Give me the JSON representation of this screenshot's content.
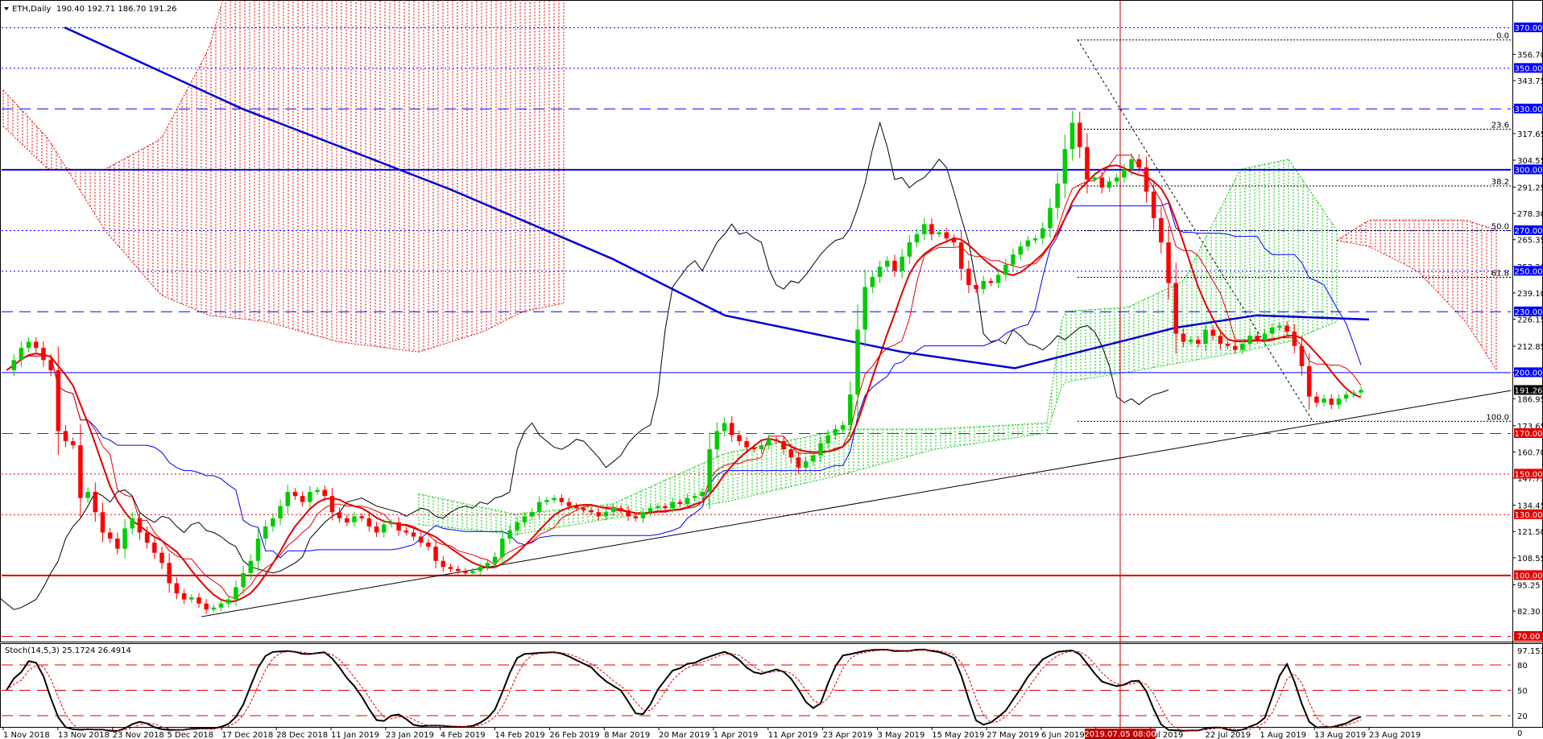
{
  "chart_data": {
    "type": "candlestick",
    "symbol_header": "ETH,Daily",
    "ohlc_header": "190.40 192.71 186.70 191.26",
    "price_scale": {
      "ylim": [
        70,
        370
      ],
      "tick_labels": [
        "356.70",
        "343.75",
        "330.80",
        "317.65",
        "304.55",
        "291.25",
        "278.30",
        "265.35",
        "252.20",
        "239.10",
        "226.15",
        "212.85",
        "199.90",
        "186.95",
        "173.65",
        "160.70",
        "147.75",
        "134.45",
        "121.50",
        "108.55",
        "95.25",
        "82.30"
      ]
    },
    "price_tags": [
      {
        "value": 370,
        "label": "370.00",
        "color": "#0000ff"
      },
      {
        "value": 350,
        "label": "350.00",
        "color": "#0000ff"
      },
      {
        "value": 330,
        "label": "330.00",
        "color": "#0000ff"
      },
      {
        "value": 300,
        "label": "300.00",
        "color": "#0000ff"
      },
      {
        "value": 270,
        "label": "270.00",
        "color": "#0000ff"
      },
      {
        "value": 250,
        "label": "250.00",
        "color": "#0000ff"
      },
      {
        "value": 230,
        "label": "230.00",
        "color": "#0000ff"
      },
      {
        "value": 200,
        "label": "200.00",
        "color": "#0000ff"
      },
      {
        "value": 170,
        "label": "170.00",
        "color": "#e00000"
      },
      {
        "value": 150,
        "label": "150.00",
        "color": "#e00000"
      },
      {
        "value": 130,
        "label": "130.00",
        "color": "#e00000"
      },
      {
        "value": 100,
        "label": "100.00",
        "color": "#e00000"
      },
      {
        "value": 70,
        "label": "70.00",
        "color": "#e00000"
      }
    ],
    "current_price": {
      "value": 191.26,
      "label": "191.26",
      "color": "#000000"
    },
    "horizontal_levels": [
      {
        "value": 370,
        "color": "#0000ff",
        "style": "dotted"
      },
      {
        "value": 350,
        "color": "#0000ff",
        "style": "dotted"
      },
      {
        "value": 330,
        "color": "#0000ff",
        "style": "dashed"
      },
      {
        "value": 300,
        "color": "#0000ff",
        "style": "solid-thick"
      },
      {
        "value": 270,
        "color": "#0000ff",
        "style": "dotted"
      },
      {
        "value": 250,
        "color": "#0000ff",
        "style": "dotted"
      },
      {
        "value": 230,
        "color": "#0000ff",
        "style": "dashed"
      },
      {
        "value": 200,
        "color": "#0000ff",
        "style": "solid"
      },
      {
        "value": 170,
        "color": "#e00000",
        "style": "dashed"
      },
      {
        "value": 150,
        "color": "#e00000",
        "style": "dotted"
      },
      {
        "value": 130,
        "color": "#e00000",
        "style": "dotted"
      },
      {
        "value": 100,
        "color": "#e00000",
        "style": "solid-thick"
      },
      {
        "value": 70,
        "color": "#e00000",
        "style": "dashed"
      }
    ],
    "fibonacci": [
      {
        "label": "0.0",
        "value": 364
      },
      {
        "label": "23.6",
        "value": 320
      },
      {
        "label": "38.2",
        "value": 292
      },
      {
        "label": "50.0",
        "value": 270
      },
      {
        "label": "61.8",
        "value": 247
      },
      {
        "label": "100.0",
        "value": 176
      }
    ],
    "x_dates": [
      "1 Nov 2018",
      "13 Nov 2018",
      "23 Nov 2018",
      "5 Dec 2018",
      "17 Dec 2018",
      "28 Dec 2018",
      "11 Jan 2019",
      "23 Jan 2019",
      "4 Feb 2019",
      "14 Feb 2019",
      "26 Feb 2019",
      "8 Mar 2019",
      "20 Mar 2019",
      "1 Apr 2019",
      "11 Apr 2019",
      "23 Apr 2019",
      "3 May 2019",
      "15 May 2019",
      "27 May 2019",
      "6 Jun 2019",
      "18 Jun 2019",
      "Jul 2019",
      "22 Jul 2019",
      "1 Aug 2019",
      "13 Aug 2019",
      "23 Aug 2019"
    ],
    "crosshair_date": "2019.07.05 08:00",
    "close_series": [
      201,
      206,
      212,
      215,
      212,
      206,
      201,
      171,
      166,
      164,
      138,
      141,
      131,
      121,
      118,
      113,
      123,
      128,
      121,
      116,
      111,
      106,
      96,
      91,
      88,
      89,
      86,
      83,
      84,
      86,
      88,
      94,
      101,
      107,
      118,
      124,
      128,
      134,
      141,
      139,
      136,
      141,
      142,
      139,
      131,
      128,
      126,
      129,
      128,
      124,
      121,
      125,
      126,
      122,
      121,
      119,
      116,
      114,
      107,
      104,
      103,
      102,
      101,
      102,
      104,
      106,
      109,
      118,
      122,
      126,
      129,
      131,
      136,
      137,
      138,
      136,
      134,
      133,
      132,
      131,
      129,
      131,
      133,
      132,
      129,
      128,
      131,
      133,
      134,
      133,
      136,
      135,
      138,
      139,
      141,
      162,
      171,
      175,
      169,
      166,
      163,
      162,
      164,
      167,
      166,
      162,
      158,
      153,
      156,
      159,
      165,
      169,
      172,
      174,
      189,
      221,
      242,
      247,
      252,
      255,
      250,
      257,
      264,
      268,
      273,
      268,
      269,
      266,
      264,
      251,
      243,
      241,
      245,
      244,
      248,
      253,
      258,
      262,
      265,
      266,
      271,
      281,
      293,
      310,
      323,
      311,
      295,
      296,
      291,
      294,
      296,
      300,
      305,
      301,
      289,
      276,
      264,
      244,
      219,
      215,
      216,
      214,
      221,
      218,
      214,
      213,
      211,
      214,
      218,
      216,
      219,
      222,
      223,
      220,
      213,
      203,
      188,
      185,
      187,
      184,
      187,
      189,
      190,
      191.26
    ],
    "stochastic": {
      "title": "Stoch(14,5,3) 25.1724 26.4914",
      "ylim": [
        0,
        100
      ],
      "levels": [
        80,
        50,
        20
      ],
      "tick_labels": [
        "97.1532",
        "80",
        "50",
        "20",
        "0"
      ]
    }
  }
}
